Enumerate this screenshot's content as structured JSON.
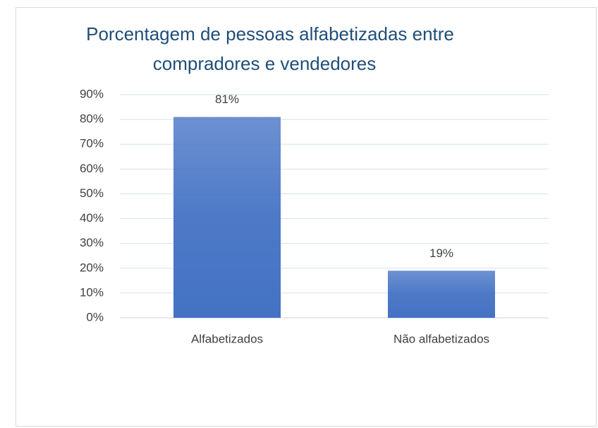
{
  "chart_data": {
    "type": "bar",
    "title": [
      "Porcentagem de pessoas alfabetizadas entre",
      "compradores e vendedores"
    ],
    "categories": [
      "Alfabetizados",
      "Não alfabetizados"
    ],
    "values": [
      81,
      19
    ],
    "value_labels": [
      "81%",
      "19%"
    ],
    "color": "#4472c4",
    "ylim": [
      0,
      90
    ],
    "yticks": [
      {
        "value": 0,
        "label": "0%"
      },
      {
        "value": 10,
        "label": "10%"
      },
      {
        "value": 20,
        "label": "20%"
      },
      {
        "value": 30,
        "label": "30%"
      },
      {
        "value": 40,
        "label": "40%"
      },
      {
        "value": 50,
        "label": "50%"
      },
      {
        "value": 60,
        "label": "60%"
      },
      {
        "value": 70,
        "label": "70%"
      },
      {
        "value": 80,
        "label": "80%"
      },
      {
        "value": 90,
        "label": "90%"
      }
    ],
    "grid": true
  }
}
